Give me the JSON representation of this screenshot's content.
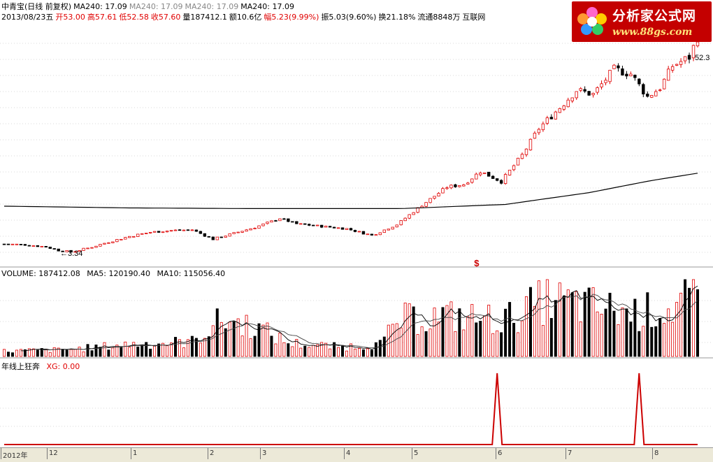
{
  "header": {
    "line1": [
      {
        "text": "中青宝(日线 前复权)",
        "color": "black"
      },
      {
        "text": "MA240: 17.09",
        "color": "black"
      },
      {
        "text": "MA240: 17.09",
        "color": "gray"
      },
      {
        "text": "MA240: 17.09",
        "color": "gray"
      },
      {
        "text": "MA240: 17.09",
        "color": "black"
      }
    ],
    "line2": [
      {
        "text": "2013/08/23五",
        "color": "black"
      },
      {
        "text": "开53.00",
        "color": "red"
      },
      {
        "text": "高57.61",
        "color": "red"
      },
      {
        "text": "低52.58",
        "color": "red"
      },
      {
        "text": "收57.60",
        "color": "red"
      },
      {
        "text": "量187412.1",
        "color": "black"
      },
      {
        "text": "额10.6亿",
        "color": "black"
      },
      {
        "text": "幅5.23(9.99%)",
        "color": "red"
      },
      {
        "text": "振5.03(9.60%)",
        "color": "black"
      },
      {
        "text": "换21.18%",
        "color": "black"
      },
      {
        "text": "流通8848万",
        "color": "black"
      },
      {
        "text": "互联网",
        "color": "black"
      }
    ]
  },
  "logo": {
    "title": "分析家公式网",
    "url": "www.88gs.com"
  },
  "volume_header": {
    "label": "VOLUME: 187412.08",
    "ma5": "MA5: 120190.40",
    "ma10": "MA10: 115056.40"
  },
  "indicator_header": {
    "name": "年线上狂奔",
    "value": "XG: 0.00"
  },
  "time_axis": [
    "2012年",
    "12",
    "1",
    "2",
    "3",
    "4",
    "5",
    "6",
    "7",
    "8"
  ],
  "colors": {
    "up": "#e00000",
    "down": "#000000",
    "ma_line": "#000000",
    "grid": "#d9d9d9",
    "signal": "#cc0000",
    "marker": "#cc0000"
  },
  "chart_data": [
    {
      "type": "candlestick",
      "title": "中青宝(日线 前复权)",
      "low_annotation": "3.34",
      "last_annotation": "52.3",
      "marker": "$",
      "marker_index": 113,
      "close_path": [
        {
          "i": 0,
          "v": 6.2
        },
        {
          "i": 5,
          "v": 6.0
        },
        {
          "i": 10,
          "v": 5.4
        },
        {
          "i": 13,
          "v": 4.4
        },
        {
          "i": 16,
          "v": 3.9
        },
        {
          "i": 20,
          "v": 5.0
        },
        {
          "i": 25,
          "v": 6.8
        },
        {
          "i": 30,
          "v": 8.4
        },
        {
          "i": 35,
          "v": 9.6
        },
        {
          "i": 40,
          "v": 10.1
        },
        {
          "i": 45,
          "v": 10.3
        },
        {
          "i": 50,
          "v": 7.6
        },
        {
          "i": 55,
          "v": 9.3
        },
        {
          "i": 60,
          "v": 11.0
        },
        {
          "i": 66,
          "v": 13.6
        },
        {
          "i": 70,
          "v": 12.0
        },
        {
          "i": 76,
          "v": 11.3
        },
        {
          "i": 82,
          "v": 10.6
        },
        {
          "i": 88,
          "v": 8.7
        },
        {
          "i": 94,
          "v": 11.8
        },
        {
          "i": 100,
          "v": 17.4
        },
        {
          "i": 106,
          "v": 22.6
        },
        {
          "i": 110,
          "v": 23.4
        },
        {
          "i": 114,
          "v": 27.1
        },
        {
          "i": 119,
          "v": 24.2
        },
        {
          "i": 124,
          "v": 31.8
        },
        {
          "i": 128,
          "v": 39.5
        },
        {
          "i": 133,
          "v": 45.5
        },
        {
          "i": 137,
          "v": 50.5
        },
        {
          "i": 141,
          "v": 49.3
        },
        {
          "i": 146,
          "v": 56.5
        },
        {
          "i": 150,
          "v": 55.2
        },
        {
          "i": 154,
          "v": 48.6
        },
        {
          "i": 157,
          "v": 51.2
        },
        {
          "i": 160,
          "v": 57.5
        },
        {
          "i": 164,
          "v": 60.0
        },
        {
          "i": 166,
          "v": 65.8
        }
      ],
      "ma240": [
        {
          "i": 0,
          "v": 17.1
        },
        {
          "i": 30,
          "v": 16.6
        },
        {
          "i": 60,
          "v": 16.4
        },
        {
          "i": 95,
          "v": 16.4
        },
        {
          "i": 120,
          "v": 17.6
        },
        {
          "i": 140,
          "v": 21.0
        },
        {
          "i": 155,
          "v": 24.5
        },
        {
          "i": 166,
          "v": 26.6
        }
      ]
    },
    {
      "type": "bar",
      "title": "VOLUME",
      "series": [
        {
          "name": "VOLUME",
          "last": 187412.08
        },
        {
          "name": "MA5",
          "last": 120190.4
        },
        {
          "name": "MA10",
          "last": 115056.4
        }
      ],
      "volume_profile": [
        {
          "i": 0,
          "v": 8
        },
        {
          "i": 15,
          "v": 10
        },
        {
          "i": 30,
          "v": 18
        },
        {
          "i": 45,
          "v": 22
        },
        {
          "i": 52,
          "v": 55
        },
        {
          "i": 60,
          "v": 45
        },
        {
          "i": 68,
          "v": 20
        },
        {
          "i": 80,
          "v": 14
        },
        {
          "i": 90,
          "v": 18
        },
        {
          "i": 95,
          "v": 55
        },
        {
          "i": 105,
          "v": 60
        },
        {
          "i": 120,
          "v": 55
        },
        {
          "i": 130,
          "v": 85
        },
        {
          "i": 140,
          "v": 75
        },
        {
          "i": 150,
          "v": 65
        },
        {
          "i": 160,
          "v": 70
        },
        {
          "i": 166,
          "v": 100
        }
      ]
    },
    {
      "type": "line",
      "title": "年线上狂奔",
      "series": [
        {
          "name": "XG",
          "last": 0.0
        }
      ],
      "signal_indices": [
        118,
        152
      ],
      "ylim": [
        0,
        1
      ]
    }
  ]
}
